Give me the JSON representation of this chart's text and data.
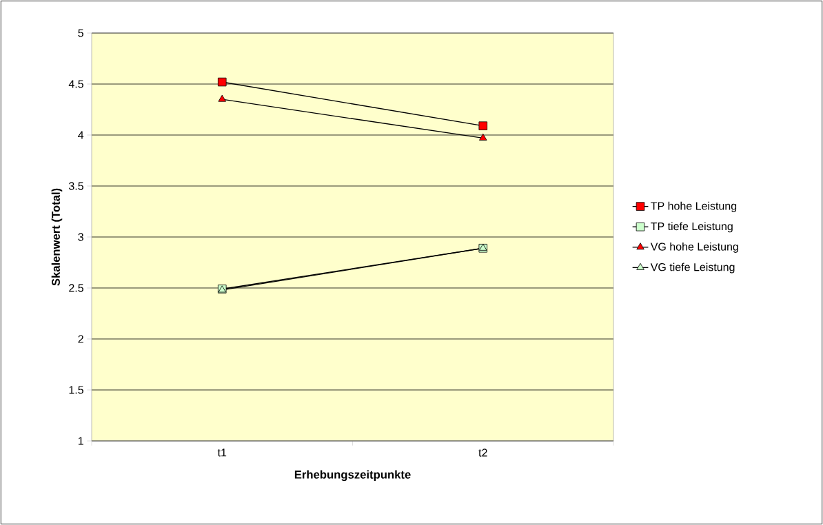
{
  "chart_data": {
    "type": "line",
    "xlabel": "Erhebungszeitpunkte",
    "ylabel": "Skalenwert (Total)",
    "categories": [
      "t1",
      "t2"
    ],
    "series": [
      {
        "name": "TP hohe Leistung",
        "color": "#ff0000",
        "marker": "square",
        "values": [
          4.52,
          4.09
        ]
      },
      {
        "name": "TP tiefe Leistung",
        "color": "#ccffcc",
        "marker": "square",
        "values": [
          2.49,
          2.89
        ]
      },
      {
        "name": "VG hohe Leistung",
        "color": "#ff0000",
        "marker": "triangle",
        "values": [
          4.35,
          3.97
        ]
      },
      {
        "name": "VG tiefe Leistung",
        "color": "#ccffcc",
        "marker": "triangle",
        "values": [
          2.48,
          2.89
        ]
      }
    ],
    "ylim": [
      1,
      5
    ],
    "yticks": [
      1,
      1.5,
      2,
      2.5,
      3,
      3.5,
      4,
      4.5,
      5
    ],
    "grid": "y",
    "legend": "right",
    "line_style": "solid"
  }
}
